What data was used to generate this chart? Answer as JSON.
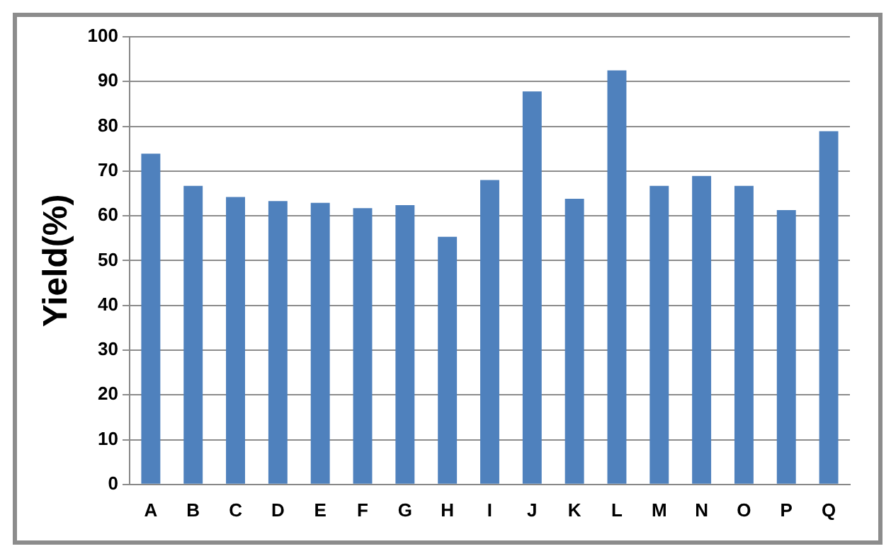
{
  "chart_data": {
    "type": "bar",
    "ylabel": "Yield(%)",
    "categories": [
      "A",
      "B",
      "C",
      "D",
      "E",
      "F",
      "G",
      "H",
      "I",
      "J",
      "K",
      "L",
      "M",
      "N",
      "O",
      "P",
      "Q"
    ],
    "values": [
      73.9,
      66.7,
      64.2,
      63.3,
      62.9,
      61.7,
      62.4,
      55.3,
      68.0,
      87.8,
      63.8,
      92.5,
      66.7,
      68.9,
      66.7,
      61.3,
      78.9
    ],
    "color": "#4f81bd",
    "ylim": [
      0,
      100
    ],
    "yticks": [
      0,
      10,
      20,
      30,
      40,
      50,
      60,
      70,
      80,
      90,
      100
    ],
    "grid": "y",
    "legend": false
  }
}
